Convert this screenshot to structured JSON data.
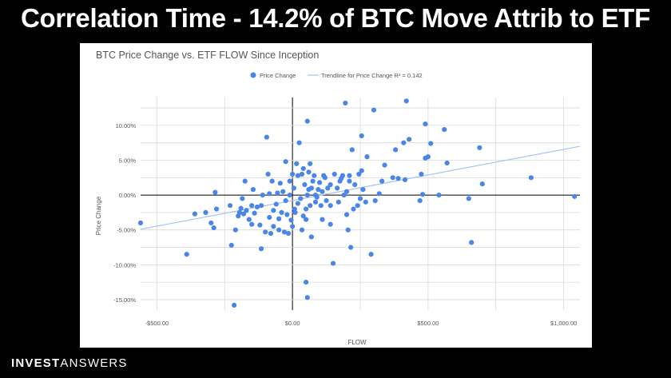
{
  "header": {
    "title": "Correlation Time - 14.2% of BTC Move Attrib to ETF"
  },
  "brand": {
    "part1": "INVEST",
    "part2": "ANSWERS"
  },
  "colors": {
    "point": "#4a86e8",
    "trendline": "#a4c2f4",
    "grid": "#d9d9d9",
    "zero_axis": "#000000",
    "panel": "#ffffff",
    "background": "#000000"
  },
  "chart_data": {
    "type": "scatter",
    "title": "BTC Price Change vs. ETF FLOW Since Inception",
    "xlabel": "FLOW",
    "ylabel": "Price Change",
    "xlim": [
      -560,
      1060
    ],
    "ylim": [
      -0.165,
      0.14
    ],
    "x_ticks": [
      -500,
      0,
      500,
      1000
    ],
    "x_tick_labels": [
      "-$500.00",
      "$0.00",
      "$500.00",
      "$1,000.00"
    ],
    "y_ticks": [
      0.1,
      0.05,
      0.0,
      -0.05,
      -0.1,
      -0.15
    ],
    "y_tick_labels": [
      "10.00%",
      "5.00%",
      "0.00%",
      "-5.00%",
      "-10.00%",
      "-15.00%"
    ],
    "grid": true,
    "legend_position": "top-center",
    "series": [
      {
        "name": "Price Change",
        "points": [
          [
            -560,
            -0.04
          ],
          [
            -390,
            -0.085
          ],
          [
            -360,
            -0.027
          ],
          [
            -320,
            -0.025
          ],
          [
            -300,
            -0.04
          ],
          [
            -290,
            -0.047
          ],
          [
            -285,
            0.004
          ],
          [
            -280,
            -0.02
          ],
          [
            -230,
            -0.015
          ],
          [
            -225,
            -0.072
          ],
          [
            -215,
            -0.158
          ],
          [
            -210,
            -0.05
          ],
          [
            -200,
            -0.03
          ],
          [
            -195,
            -0.025
          ],
          [
            -190,
            -0.019
          ],
          [
            -185,
            -0.005
          ],
          [
            -180,
            -0.027
          ],
          [
            -175,
            0.02
          ],
          [
            -170,
            -0.022
          ],
          [
            -160,
            -0.035
          ],
          [
            -150,
            -0.015
          ],
          [
            -150,
            -0.042
          ],
          [
            -145,
            0.008
          ],
          [
            -140,
            -0.026
          ],
          [
            -130,
            -0.017
          ],
          [
            -120,
            -0.043
          ],
          [
            -115,
            -0.077
          ],
          [
            -115,
            -0.015
          ],
          [
            -110,
            0.0
          ],
          [
            -100,
            -0.053
          ],
          [
            -95,
            0.083
          ],
          [
            -90,
            0.03
          ],
          [
            -85,
            0.002
          ],
          [
            -85,
            -0.032
          ],
          [
            -80,
            -0.055
          ],
          [
            -75,
            0.02
          ],
          [
            -70,
            -0.045
          ],
          [
            -70,
            -0.022
          ],
          [
            -60,
            -0.013
          ],
          [
            -55,
            0.003
          ],
          [
            -50,
            -0.05
          ],
          [
            -50,
            -0.034
          ],
          [
            -45,
            0.017
          ],
          [
            -40,
            -0.025
          ],
          [
            -35,
            0.005
          ],
          [
            -30,
            -0.053
          ],
          [
            -25,
            0.048
          ],
          [
            -25,
            -0.008
          ],
          [
            -20,
            -0.028
          ],
          [
            -15,
            -0.055
          ],
          [
            -10,
            0.0
          ],
          [
            -10,
            0.02
          ],
          [
            -5,
            -0.036
          ],
          [
            0,
            0.03
          ],
          [
            0,
            -0.045
          ],
          [
            5,
            0.01
          ],
          [
            8,
            -0.02
          ],
          [
            10,
            -0.025
          ],
          [
            15,
            0.045
          ],
          [
            20,
            0.028
          ],
          [
            20,
            -0.012
          ],
          [
            25,
            0.075
          ],
          [
            30,
            -0.005
          ],
          [
            35,
            -0.05
          ],
          [
            35,
            0.03
          ],
          [
            40,
            0.038
          ],
          [
            40,
            -0.03
          ],
          [
            45,
            0.015
          ],
          [
            50,
            -0.02
          ],
          [
            50,
            -0.035
          ],
          [
            50,
            -0.125
          ],
          [
            55,
            0.106
          ],
          [
            55,
            -0.147
          ],
          [
            55,
            0.0
          ],
          [
            60,
            0.033
          ],
          [
            60,
            0.008
          ],
          [
            65,
            0.045
          ],
          [
            65,
            -0.015
          ],
          [
            70,
            -0.06
          ],
          [
            70,
            0.01
          ],
          [
            75,
            0.02
          ],
          [
            80,
            0.028
          ],
          [
            85,
            -0.01
          ],
          [
            85,
            0.0
          ],
          [
            90,
            -0.003
          ],
          [
            95,
            0.008
          ],
          [
            100,
            0.018
          ],
          [
            105,
            -0.015
          ],
          [
            110,
            -0.035
          ],
          [
            110,
            0.005
          ],
          [
            115,
            0.028
          ],
          [
            120,
            0.025
          ],
          [
            125,
            -0.008
          ],
          [
            130,
            0.01
          ],
          [
            140,
            -0.042
          ],
          [
            140,
            -0.015
          ],
          [
            140,
            0.015
          ],
          [
            150,
            -0.098
          ],
          [
            155,
            0.03
          ],
          [
            165,
            0.01
          ],
          [
            170,
            -0.01
          ],
          [
            175,
            0.02
          ],
          [
            180,
            0.024
          ],
          [
            185,
            0.028
          ],
          [
            190,
            0.0
          ],
          [
            195,
            0.132
          ],
          [
            200,
            -0.028
          ],
          [
            200,
            0.005
          ],
          [
            205,
            -0.05
          ],
          [
            210,
            0.028
          ],
          [
            210,
            0.02
          ],
          [
            215,
            -0.075
          ],
          [
            220,
            0.065
          ],
          [
            225,
            -0.02
          ],
          [
            230,
            0.015
          ],
          [
            240,
            -0.015
          ],
          [
            245,
            0.03
          ],
          [
            250,
            -0.005
          ],
          [
            255,
            0.085
          ],
          [
            255,
            0.035
          ],
          [
            260,
            0.008
          ],
          [
            270,
            -0.01
          ],
          [
            275,
            0.055
          ],
          [
            290,
            -0.085
          ],
          [
            300,
            0.122
          ],
          [
            305,
            -0.008
          ],
          [
            320,
            0.002
          ],
          [
            330,
            0.02
          ],
          [
            340,
            0.043
          ],
          [
            370,
            0.025
          ],
          [
            380,
            0.065
          ],
          [
            390,
            0.024
          ],
          [
            410,
            0.075
          ],
          [
            415,
            0.022
          ],
          [
            420,
            0.135
          ],
          [
            430,
            0.08
          ],
          [
            470,
            -0.008
          ],
          [
            475,
            0.03
          ],
          [
            480,
            0.001
          ],
          [
            490,
            0.053
          ],
          [
            490,
            0.102
          ],
          [
            500,
            0.055
          ],
          [
            510,
            0.074
          ],
          [
            540,
            0.0
          ],
          [
            560,
            0.094
          ],
          [
            570,
            0.046
          ],
          [
            650,
            -0.005
          ],
          [
            660,
            -0.068
          ],
          [
            690,
            0.068
          ],
          [
            700,
            0.016
          ],
          [
            880,
            0.025
          ],
          [
            1040,
            -0.002
          ]
        ]
      }
    ],
    "trendline": {
      "label": "Trendline for Price Change R² = 0.142",
      "r_squared": 0.142,
      "from": [
        -560,
        -0.049
      ],
      "to": [
        1060,
        0.07
      ]
    }
  }
}
